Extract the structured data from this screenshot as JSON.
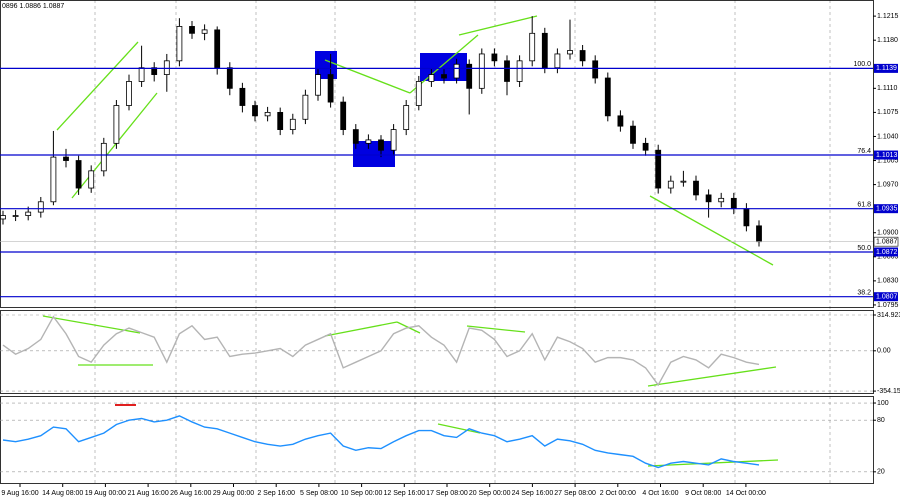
{
  "chart_data": [
    {
      "type": "candlestick",
      "title": "0896 1.0886 1.0887",
      "ohlc": [
        [
          1.092,
          1.0932,
          1.0912,
          1.0925
        ],
        [
          1.0925,
          1.0933,
          1.0917,
          1.0925
        ],
        [
          1.0925,
          1.0938,
          1.0918,
          1.093
        ],
        [
          1.093,
          1.0952,
          1.0922,
          1.0945
        ],
        [
          1.0945,
          1.1048,
          1.094,
          1.101
        ],
        [
          1.101,
          1.1022,
          1.0995,
          1.1005
        ],
        [
          1.1005,
          1.1012,
          1.0955,
          1.0965
        ],
        [
          1.0965,
          1.0998,
          1.0958,
          1.099
        ],
        [
          1.099,
          1.1038,
          1.0982,
          1.103
        ],
        [
          1.103,
          1.1093,
          1.1022,
          1.1085
        ],
        [
          1.1085,
          1.113,
          1.1078,
          1.112
        ],
        [
          1.112,
          1.1172,
          1.1112,
          1.114
        ],
        [
          1.114,
          1.1148,
          1.112,
          1.113
        ],
        [
          1.113,
          1.116,
          1.1105,
          1.115
        ],
        [
          1.115,
          1.1212,
          1.1142,
          1.12
        ],
        [
          1.12,
          1.1208,
          1.1182,
          1.119
        ],
        [
          1.119,
          1.1203,
          1.118,
          1.1195
        ],
        [
          1.1195,
          1.12,
          1.113,
          1.114
        ],
        [
          1.114,
          1.1148,
          1.11,
          1.111
        ],
        [
          1.111,
          1.1118,
          1.1075,
          1.1085
        ],
        [
          1.1085,
          1.1092,
          1.1062,
          1.107
        ],
        [
          1.107,
          1.1083,
          1.1062,
          1.1075
        ],
        [
          1.1075,
          1.1082,
          1.1042,
          1.105
        ],
        [
          1.105,
          1.1073,
          1.1043,
          1.1065
        ],
        [
          1.1065,
          1.1108,
          1.1058,
          1.11
        ],
        [
          1.11,
          1.1138,
          1.1092,
          1.113
        ],
        [
          1.113,
          1.116,
          1.1082,
          1.109
        ],
        [
          1.109,
          1.1098,
          1.1042,
          1.105
        ],
        [
          1.105,
          1.1058,
          1.1022,
          1.103
        ],
        [
          1.103,
          1.1043,
          1.1022,
          1.1035
        ],
        [
          1.1035,
          1.1042,
          1.101,
          1.102
        ],
        [
          1.102,
          1.1058,
          1.1012,
          1.105
        ],
        [
          1.105,
          1.1093,
          1.1042,
          1.1085
        ],
        [
          1.1085,
          1.1128,
          1.1078,
          1.112
        ],
        [
          1.112,
          1.1138,
          1.1112,
          1.113
        ],
        [
          1.113,
          1.1138,
          1.1117,
          1.1125
        ],
        [
          1.1125,
          1.1153,
          1.1117,
          1.1145
        ],
        [
          1.1145,
          1.1152,
          1.1072,
          1.111
        ],
        [
          1.111,
          1.1168,
          1.1102,
          1.116
        ],
        [
          1.116,
          1.1168,
          1.1142,
          1.115
        ],
        [
          1.115,
          1.1158,
          1.11,
          1.112
        ],
        [
          1.112,
          1.1158,
          1.1112,
          1.115
        ],
        [
          1.115,
          1.1215,
          1.1142,
          1.119
        ],
        [
          1.119,
          1.1198,
          1.1132,
          1.114
        ],
        [
          1.114,
          1.1168,
          1.1132,
          1.116
        ],
        [
          1.116,
          1.121,
          1.1152,
          1.1165
        ],
        [
          1.1165,
          1.1173,
          1.1142,
          1.115
        ],
        [
          1.115,
          1.1158,
          1.1117,
          1.1125
        ],
        [
          1.1125,
          1.1133,
          1.1062,
          1.107
        ],
        [
          1.107,
          1.1078,
          1.1047,
          1.1055
        ],
        [
          1.1055,
          1.1063,
          1.1022,
          1.103
        ],
        [
          1.103,
          1.1038,
          1.1012,
          1.102
        ],
        [
          1.102,
          1.1028,
          1.0957,
          1.0965
        ],
        [
          1.0965,
          1.0983,
          1.0957,
          1.0975
        ],
        [
          1.0975,
          1.099,
          1.0967,
          1.0975
        ],
        [
          1.0975,
          1.0983,
          1.0947,
          1.0955
        ],
        [
          1.0955,
          1.0963,
          1.0922,
          1.0945
        ],
        [
          1.0945,
          1.0958,
          1.0937,
          1.095
        ],
        [
          1.095,
          1.0958,
          1.0927,
          1.0935
        ],
        [
          1.0935,
          1.0943,
          1.0902,
          1.091
        ],
        [
          1.091,
          1.0918,
          1.088,
          1.0887
        ]
      ],
      "ylim": [
        1.0792,
        1.1237
      ],
      "yticks": [
        1.1215,
        {
          "value": 1.118,
          "label": "1.1180"
        },
        {
          "value": 1.111,
          "label": "1.1110"
        },
        1.1075,
        {
          "value": 1.104,
          "label": "1.1040"
        },
        1.1005,
        {
          "value": 1.097,
          "label": "1.0970"
        },
        {
          "value": 1.09,
          "label": "1.0900"
        },
        1.0865,
        {
          "value": 1.083,
          "label": "1.0830"
        },
        1.0795
      ],
      "levels": [
        {
          "ratio": "100.0",
          "price": 1.1139
        },
        {
          "ratio": "76.4",
          "price": 1.1013
        },
        {
          "ratio": "61.8",
          "price": 1.0935
        },
        {
          "ratio": "50.0",
          "price": 1.0872
        },
        {
          "ratio": "38.2",
          "price": 1.0807
        }
      ],
      "current_price": 1.0887,
      "level_color": "#0000cd"
    },
    {
      "type": "line",
      "color": "#b4b4b4",
      "values": [
        50,
        -30,
        20,
        100,
        300,
        150,
        -50,
        -100,
        50,
        150,
        200,
        160,
        120,
        -100,
        150,
        220,
        100,
        120,
        -50,
        -30,
        -20,
        0,
        20,
        -50,
        50,
        100,
        150,
        -150,
        -100,
        -50,
        0,
        150,
        200,
        220,
        120,
        50,
        -100,
        200,
        180,
        100,
        -50,
        0,
        150,
        -80,
        120,
        80,
        20,
        -100,
        -60,
        -60,
        -80,
        -150,
        -300,
        -100,
        -50,
        -80,
        -150,
        -30,
        -60,
        -100,
        -120
      ],
      "ylim": [
        -371,
        350
      ],
      "yticks": [
        314.9232,
        {
          "value": 0,
          "label": "0.00"
        },
        -354.159
      ]
    },
    {
      "type": "line",
      "color": "#1e90ff",
      "values": [
        57,
        55,
        58,
        62,
        72,
        70,
        55,
        60,
        65,
        75,
        80,
        82,
        78,
        80,
        85,
        78,
        72,
        70,
        65,
        60,
        55,
        52,
        50,
        52,
        58,
        62,
        65,
        50,
        45,
        48,
        47,
        55,
        62,
        68,
        68,
        62,
        60,
        70,
        65,
        62,
        55,
        58,
        62,
        50,
        58,
        56,
        52,
        45,
        42,
        40,
        38,
        30,
        25,
        30,
        32,
        30,
        28,
        35,
        32,
        30,
        28
      ],
      "ylim": [
        7,
        107
      ],
      "yticks": [
        100,
        80,
        20
      ],
      "x_labels": [
        "9 Aug 16:00",
        "14 Aug 08:00",
        "19 Aug 00:00",
        "21 Aug 16:00",
        "26 Aug 16:00",
        "29 Aug 00:00",
        "2 Sep 16:00",
        "5 Sep 08:00",
        "10 Sep 00:00",
        "12 Sep 16:00",
        "17 Sep 08:00",
        "20 Sep 00:00",
        "24 Sep 16:00",
        "27 Sep 08:00",
        "2 Oct 00:00",
        "4 Oct 16:00",
        "9 Oct 08:00",
        "14 Oct 00:00"
      ]
    }
  ]
}
